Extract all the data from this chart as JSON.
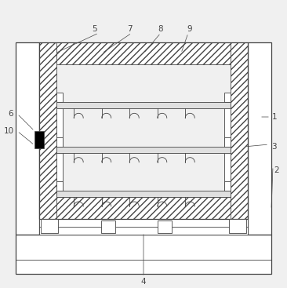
{
  "bg_color": "#f0f0f0",
  "line_color": "#444444",
  "label_color": "#444444",
  "fig_width": 3.66,
  "fig_height": 3.67,
  "dpi": 100
}
